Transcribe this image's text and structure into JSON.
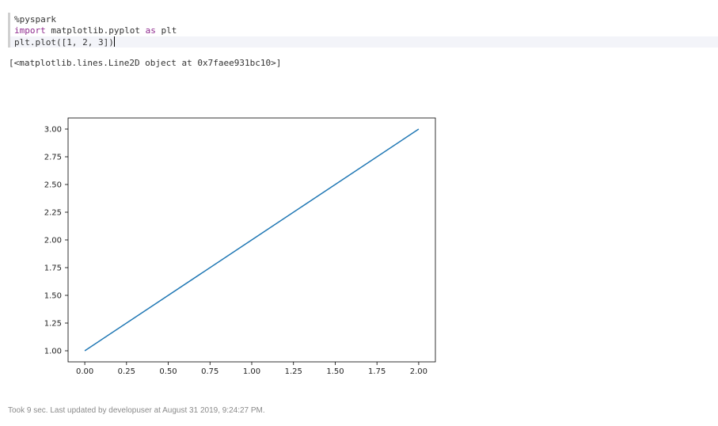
{
  "code": {
    "line1_magic": "%pyspark",
    "line2_kw_import": "import",
    "line2_module": " matplotlib.pyplot ",
    "line2_kw_as": "as",
    "line2_alias": " plt",
    "line3_call": "plt.plot(",
    "line3_args": "[1, 2, 3]",
    "line3_close": ")"
  },
  "output": {
    "text": "[<matplotlib.lines.Line2D object at 0x7faee931bc10>]"
  },
  "footer": {
    "status": "Took 9 sec. Last updated by developuser at August 31 2019, 9:24:27 PM."
  },
  "colors": {
    "line": "#1f77b4",
    "keyword": "#8f2a8e"
  },
  "chart_data": {
    "type": "line",
    "title": "",
    "xlabel": "",
    "ylabel": "",
    "series": [
      {
        "x": [
          0,
          1,
          2
        ],
        "values": [
          1,
          2,
          3
        ]
      }
    ],
    "xlim": [
      -0.1,
      2.1
    ],
    "ylim": [
      0.9,
      3.1
    ],
    "xticks": [
      0.0,
      0.25,
      0.5,
      0.75,
      1.0,
      1.25,
      1.5,
      1.75,
      2.0
    ],
    "xtick_labels": [
      "0.00",
      "0.25",
      "0.50",
      "0.75",
      "1.00",
      "1.25",
      "1.50",
      "1.75",
      "2.00"
    ],
    "yticks": [
      1.0,
      1.25,
      1.5,
      1.75,
      2.0,
      2.25,
      2.5,
      2.75,
      3.0
    ],
    "ytick_labels": [
      "1.00",
      "1.25",
      "1.50",
      "1.75",
      "2.00",
      "2.25",
      "2.50",
      "2.75",
      "3.00"
    ],
    "grid": false,
    "legend": "none"
  }
}
